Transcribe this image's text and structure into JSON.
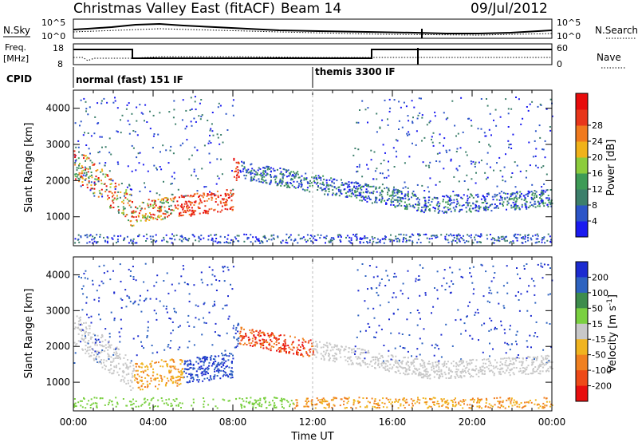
{
  "header": {
    "title": "Christmas Valley East (fitACF)",
    "beam": "Beam 14",
    "date": "09/Jul/2012"
  },
  "noise_panel": {
    "left_label": "N.Sky",
    "left_ticks": [
      "10^5",
      "10^0"
    ],
    "right_ticks": [
      "10^5",
      "10^0"
    ],
    "right_label": "N.Search"
  },
  "freq_panel": {
    "left_label_1": "Freq.",
    "left_label_2": "[MHz]",
    "left_ticks": [
      "18",
      "8"
    ],
    "right_ticks": [
      "60",
      "0"
    ],
    "right_label": "Nave"
  },
  "cpid_panel": {
    "label": "CPID",
    "modes": [
      {
        "name": "normal (fast) 151 IF",
        "start_hour": 0
      },
      {
        "name": "themis 3300 IF",
        "start_hour": 12
      }
    ]
  },
  "chart_data": [
    {
      "type": "heatmap",
      "panel": "power",
      "ylabel": "Slant Range [km]",
      "xlabel": "",
      "ylim": [
        200,
        4500
      ],
      "xlim": [
        0,
        24
      ],
      "yticks": [
        "1000",
        "2000",
        "3000",
        "4000"
      ],
      "colorbar": {
        "label": "Power [dB]",
        "ticks": [
          "4",
          "8",
          "12",
          "16",
          "20",
          "24",
          "28"
        ],
        "range": [
          0,
          32
        ],
        "colors": [
          "#1a1af0",
          "#2c55c8",
          "#3c7f6b",
          "#3e9b56",
          "#8ccc3c",
          "#f0b21a",
          "#f07a1e",
          "#e8361a",
          "#e80c0c"
        ]
      },
      "features": [
        {
          "start_hour": 0.0,
          "end_hour": 3.0,
          "range_start_km": 2600,
          "range_end_km": 1000,
          "intensity": "high"
        },
        {
          "start_hour": 3.0,
          "end_hour": 8.0,
          "range_start_km": 1000,
          "range_end_km": 1400,
          "intensity": "high"
        },
        {
          "start_hour": 8.0,
          "end_hour": 22.0,
          "range_start_km": 2400,
          "range_end_km": 1300,
          "intensity": "low"
        }
      ]
    },
    {
      "type": "heatmap",
      "panel": "velocity",
      "ylabel": "Slant Range [km]",
      "xlabel": "Time UT",
      "ylim": [
        200,
        4500
      ],
      "xlim": [
        0,
        24
      ],
      "yticks": [
        "1000",
        "2000",
        "3000",
        "4000"
      ],
      "xticks": [
        "00:00",
        "04:00",
        "08:00",
        "12:00",
        "16:00",
        "20:00",
        "00:00"
      ],
      "colorbar": {
        "label": "Velocity [m s^-1]",
        "ticks": [
          "200",
          "100",
          "50",
          "15",
          "-15",
          "-50",
          "-100",
          "-200"
        ],
        "colors": [
          "#1c2bd0",
          "#2e63c0",
          "#3d8c4c",
          "#7ad040",
          "#c8c8c8",
          "#f0b420",
          "#f08020",
          "#ee4a18",
          "#e80e0e"
        ]
      }
    }
  ]
}
